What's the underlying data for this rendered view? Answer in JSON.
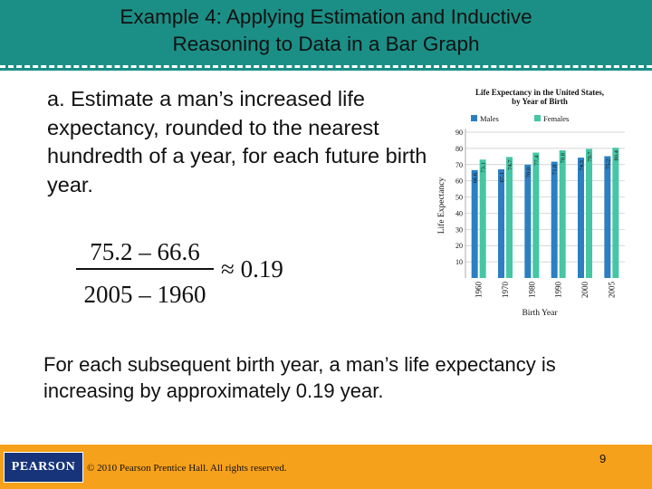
{
  "header": {
    "title": "Example 4: Applying Estimation and Inductive\nReasoning to Data in a Bar Graph"
  },
  "body": {
    "question": "a.  Estimate a man’s increased life expectancy, rounded to the nearest hundredth of a year, for each future birth year."
  },
  "formula": {
    "numerator": "75.2 – 66.6",
    "denominator": "2005 – 1960",
    "result": "≈ 0.19"
  },
  "conclusion": "For each subsequent birth year, a man’s life expectancy is increasing by approximately 0.19 year.",
  "chart_data": {
    "type": "bar",
    "title": "Life Expectancy in the United States, by Year of Birth",
    "xlabel": "Birth Year",
    "ylabel": "Life Expectancy",
    "categories": [
      "1960",
      "1970",
      "1980",
      "1990",
      "2000",
      "2005"
    ],
    "series": [
      {
        "name": "Males",
        "values": [
          66.6,
          67.1,
          70.0,
          71.8,
          74.3,
          75.2
        ],
        "color": "#2d7fc1"
      },
      {
        "name": "Females",
        "values": [
          73.1,
          74.7,
          77.4,
          78.8,
          79.7,
          80.4
        ],
        "color": "#45c6a4"
      }
    ],
    "labels": {
      "Males": [
        "66.6",
        "67.1",
        "70.0",
        "71.8",
        "74.3",
        "75.2"
      ],
      "Females": [
        "73.1",
        "74.7",
        "77.4",
        "78.8",
        "79.7",
        "80.4"
      ]
    },
    "ylim": [
      0,
      90
    ],
    "yticks": [
      10,
      20,
      30,
      40,
      50,
      60,
      70,
      80,
      90
    ],
    "grid": true,
    "legend": "top"
  },
  "footer": {
    "logo": "PEARSON",
    "copyright": "© 2010 Pearson Prentice Hall. All rights reserved.",
    "page": "9"
  },
  "colors": {
    "header": "#1b8f86",
    "footer": "#f6a11b",
    "logo": "#17347a"
  }
}
